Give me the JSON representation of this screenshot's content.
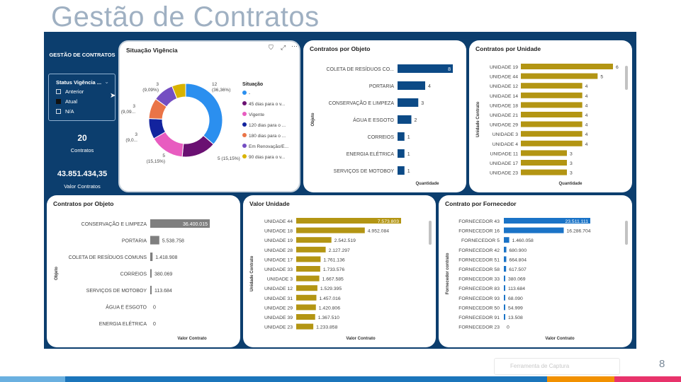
{
  "slide": {
    "title": "Gestão de Contratos",
    "page_number": "8",
    "footer_text": "Ferramenta de Captura"
  },
  "sidebar": {
    "title": "GESTÃO DE CONTRATOS",
    "slicer": {
      "title": "Status Vigência ...",
      "options": [
        {
          "label": "Anterior",
          "checked": false
        },
        {
          "label": "Atual",
          "checked": true
        },
        {
          "label": "N/A",
          "checked": false
        }
      ]
    },
    "kpis": [
      {
        "value": "20",
        "label": "Contratos"
      },
      {
        "value": "43.851.434,35",
        "label": "Valor Contratos"
      }
    ]
  },
  "colors": {
    "navy": "#0c3e6e",
    "bar_blue": "#0c4a86",
    "bar_gold": "#b39513",
    "bar_gray": "#7f7f7f",
    "bar_bright_blue": "#1a73c7"
  },
  "chart_data": [
    {
      "id": "situacao",
      "type": "pie",
      "title": "Situação Vigência",
      "legend_title": "Situação",
      "slices": [
        {
          "label": "-",
          "value": 12,
          "data_label": "12",
          "pct_label": "(36,36%)",
          "color": "#2b8fef"
        },
        {
          "label": "45 dias para o v...",
          "value": 5,
          "data_label": "5 (15,15%)",
          "color": "#6a1072"
        },
        {
          "label": "Vigente",
          "value": 5,
          "data_label": "5",
          "pct_label": "(15,15%)",
          "color": "#e85cc0"
        },
        {
          "label": "120 dias para o ...",
          "value": 3,
          "data_label": "3",
          "pct_label": "(9,0...",
          "color": "#12239e"
        },
        {
          "label": "180 dias para o ...",
          "value": 3,
          "data_label": "3",
          "pct_label": "(9,09...",
          "color": "#ea7447"
        },
        {
          "label": "Em Renovação/E...",
          "value": 3,
          "data_label": "3",
          "pct_label": "(9,09%)",
          "color": "#744ec2"
        },
        {
          "label": "90 dias para o v...",
          "value": 2,
          "data_label": "",
          "color": "#d9b300"
        }
      ]
    },
    {
      "id": "qtd_objeto",
      "type": "bar",
      "title": "Contratos por Objeto",
      "xlabel": "Quantidade",
      "ylabel": "Objeto",
      "categories": [
        "COLETA DE RESÍDUOS CO...",
        "PORTARIA",
        "CONSERVAÇÃO E LIMPEZA",
        "ÁGUA E ESGOTO",
        "CORREIOS",
        "ENERGIA ELÉTRICA",
        "SERVIÇOS DE MOTOBOY"
      ],
      "values": [
        8,
        4,
        3,
        2,
        1,
        1,
        1
      ],
      "labels": [
        "8",
        "4",
        "3",
        "2",
        "1",
        "1",
        "1"
      ],
      "xlim": [
        0,
        8
      ]
    },
    {
      "id": "qtd_unidade",
      "type": "bar",
      "title": "Contratos por Unidade",
      "xlabel": "Quantidade",
      "ylabel": "Unidade Contrato",
      "categories": [
        "UNIDADE 19",
        "UNIDADE 44",
        "UNIDADE 12",
        "UNIDADE 14",
        "UNIDADE 18",
        "UNIDADE 21",
        "UNIDADE 29",
        "UNIDADE 3",
        "UNIDADE 4",
        "UNIDADE 11",
        "UNIDADE 17",
        "UNIDADE 23"
      ],
      "values": [
        6,
        5,
        4,
        4,
        4,
        4,
        4,
        4,
        4,
        3,
        3,
        3
      ],
      "labels": [
        "6",
        "5",
        "4",
        "4",
        "4",
        "4",
        "4",
        "4",
        "4",
        "3",
        "3",
        "3"
      ],
      "xlim": [
        0,
        6
      ]
    },
    {
      "id": "valor_objeto",
      "type": "bar",
      "title": "Contratos por Objeto",
      "xlabel": "Valor Contrato",
      "ylabel": "Objeto",
      "categories": [
        "CONSERVAÇÃO E LIMPEZA",
        "PORTARIA",
        "COLETA DE RESÍDUOS COMUNS",
        "CORREIOS",
        "SERVIÇOS DE MOTOBOY",
        "ÁGUA E ESGOTO",
        "ENERGIA ELÉTRICA"
      ],
      "values": [
        36400015,
        5538758,
        1418908,
        380069,
        113684,
        0,
        0
      ],
      "labels": [
        "36.400.015",
        "5.538.758",
        "1.418.908",
        "380.069",
        "113.684",
        "0",
        "0"
      ],
      "xlim": [
        0,
        36400015
      ]
    },
    {
      "id": "valor_unidade",
      "type": "bar",
      "title": "Valor Unidade",
      "xlabel": "Valor Contrato",
      "ylabel": "Unidade Contrato",
      "categories": [
        "UNIDADE 44",
        "UNIDADE 18",
        "UNIDADE 19",
        "UNIDADE 28",
        "UNIDADE 17",
        "UNIDADE 33",
        "UNIDADE 3",
        "UNIDADE 12",
        "UNIDADE 31",
        "UNIDADE 29",
        "UNIDADE 39",
        "UNIDADE 23"
      ],
      "values": [
        7573803,
        4952084,
        2542519,
        2127297,
        1761136,
        1733576,
        1667585,
        1529395,
        1457016,
        1420806,
        1367510,
        1233858
      ],
      "labels": [
        "7.573.803",
        "4.952.084",
        "2.542.519",
        "2.127.297",
        "1.761.136",
        "1.733.576",
        "1.667.585",
        "1.529.395",
        "1.457.016",
        "1.420.806",
        "1.367.510",
        "1.233.858"
      ],
      "xlim": [
        0,
        7573803
      ]
    },
    {
      "id": "valor_fornecedor",
      "type": "bar",
      "title": "Contrato por Fornecedor",
      "xlabel": "Valor Contrato",
      "ylabel": "Fornecedor contrato",
      "categories": [
        "FORNECEDOR 43",
        "FORNECEDOR 16",
        "FORNECEDOR 5",
        "FORNECEDOR 42",
        "FORNECEDOR 51",
        "FORNECEDOR 58",
        "FORNECEDOR 33",
        "FORNECEDOR 83",
        "FORNECEDOR 93",
        "FORNECEDOR 50",
        "FORNECEDOR 91",
        "FORNECEDOR 23"
      ],
      "values": [
        23511111,
        16286704,
        1460058,
        680900,
        664804,
        617507,
        380069,
        113684,
        68090,
        54999,
        13508,
        0
      ],
      "labels": [
        "23.511.111",
        "16.286.704",
        "1.460.058",
        "680.900",
        "664.804",
        "617.507",
        "380.069",
        "113.684",
        "68.090",
        "54.999",
        "13.508",
        "0"
      ],
      "xlim": [
        0,
        23511111
      ]
    }
  ]
}
